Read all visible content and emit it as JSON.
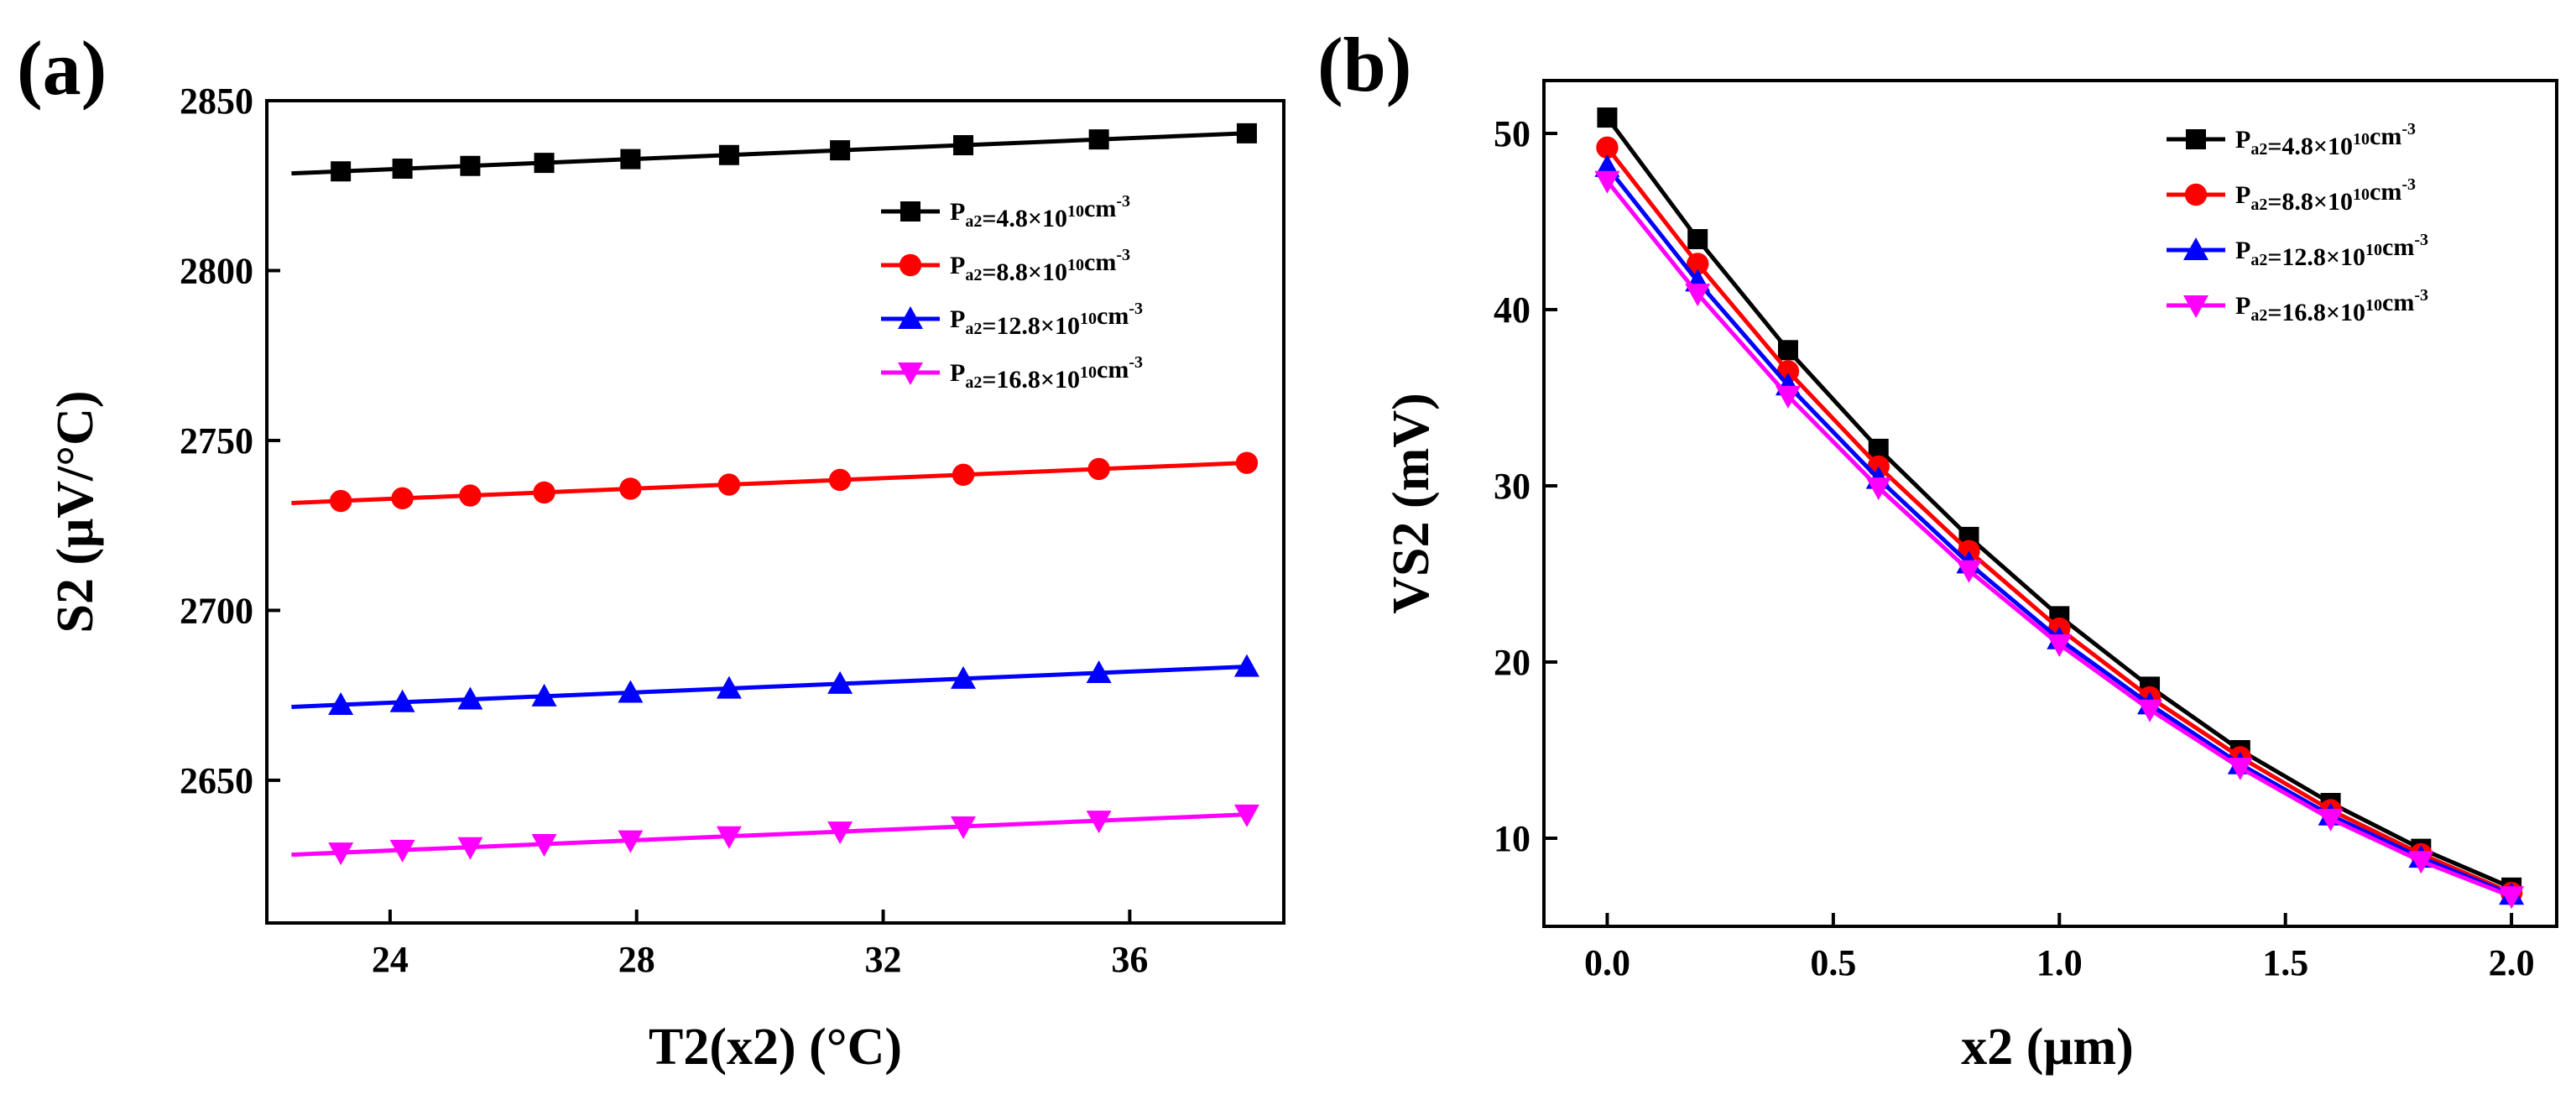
{
  "panels": [
    {
      "label": "(a)",
      "chart_data": {
        "type": "line",
        "xlabel": "T2(x2) (°C)",
        "ylabel": "S2 (μV/°C)",
        "xlim": [
          22,
          38.5
        ],
        "ylim": [
          2608,
          2850
        ],
        "xticks": [
          24,
          28,
          32,
          36
        ],
        "yticks": [
          2650,
          2700,
          2750,
          2800,
          2850
        ],
        "legend_position": "right",
        "series": [
          {
            "name": "Pa2=4.8×10^10cm^-3",
            "label_main": "P",
            "label_sub": "a2",
            "label_mid": "=4.8×10",
            "label_sup": "10",
            "label_unit": "cm",
            "label_exp": "-3",
            "color": "#000000",
            "marker": "square",
            "line_start": [
              22.4,
              2828.6
            ],
            "line_end": [
              38.0,
              2840.5
            ],
            "x": [
              23.2,
              24.2,
              25.3,
              26.5,
              27.9,
              29.5,
              31.3,
              33.3,
              35.5,
              37.9
            ],
            "y": [
              2829.2,
              2830.0,
              2830.8,
              2831.7,
              2832.8,
              2834.0,
              2835.4,
              2836.9,
              2838.6,
              2840.4
            ]
          },
          {
            "name": "Pa2=8.8×10^10cm^-3",
            "label_main": "P",
            "label_sub": "a2",
            "label_mid": "=8.8×10",
            "label_sup": "10",
            "label_unit": "cm",
            "label_exp": "-3",
            "color": "#ff0000",
            "marker": "circle",
            "line_start": [
              22.4,
              2731.6
            ],
            "line_end": [
              38.0,
              2743.5
            ],
            "x": [
              23.2,
              24.2,
              25.3,
              26.5,
              27.9,
              29.5,
              31.3,
              33.3,
              35.5,
              37.9
            ],
            "y": [
              2732.2,
              2733.0,
              2733.8,
              2734.7,
              2735.8,
              2737.0,
              2738.4,
              2739.9,
              2741.6,
              2743.4
            ]
          },
          {
            "name": "Pa2=12.8×10^10cm^-3",
            "label_main": "P",
            "label_sub": "a2",
            "label_mid": "=12.8×10",
            "label_sup": "10",
            "label_unit": "cm",
            "label_exp": "-3",
            "color": "#0000ff",
            "marker": "triangle-up",
            "line_start": [
              22.4,
              2671.6
            ],
            "line_end": [
              38.0,
              2683.5
            ],
            "x": [
              23.2,
              24.2,
              25.3,
              26.5,
              27.9,
              29.5,
              31.3,
              33.3,
              35.5,
              37.9
            ],
            "y": [
              2672.2,
              2673.0,
              2673.8,
              2674.7,
              2675.8,
              2677.0,
              2678.4,
              2679.9,
              2681.6,
              2683.4
            ]
          },
          {
            "name": "Pa2=16.8×10^10cm^-3",
            "label_main": "P",
            "label_sub": "a2",
            "label_mid": "=16.8×10",
            "label_sup": "10",
            "label_unit": "cm",
            "label_exp": "-3",
            "color": "#ff00ff",
            "marker": "triangle-down",
            "line_start": [
              22.4,
              2628.1
            ],
            "line_end": [
              38.0,
              2640.0
            ],
            "x": [
              23.2,
              24.2,
              25.3,
              26.5,
              27.9,
              29.5,
              31.3,
              33.3,
              35.5,
              37.9
            ],
            "y": [
              2628.7,
              2629.5,
              2630.3,
              2631.2,
              2632.3,
              2633.5,
              2634.9,
              2636.4,
              2638.1,
              2639.9
            ]
          }
        ]
      }
    },
    {
      "label": "(b)",
      "chart_data": {
        "type": "line",
        "xlabel": "x2 (μm)",
        "ylabel": "VS2 (mV)",
        "xlim": [
          -0.14,
          2.1
        ],
        "ylim": [
          5,
          53
        ],
        "xticks": [
          0.0,
          0.5,
          1.0,
          1.5,
          2.0
        ],
        "xtick_labels": [
          "0.0",
          "0.5",
          "1.0",
          "1.5",
          "2.0"
        ],
        "yticks": [
          10,
          20,
          30,
          40,
          50
        ],
        "legend_position": "top-right",
        "series": [
          {
            "name": "Pa2=4.8×10^10cm^-3",
            "label_main": "P",
            "label_sub": "a2",
            "label_mid": "=4.8×10",
            "label_sup": "10",
            "label_unit": "cm",
            "label_exp": "-3",
            "color": "#000000",
            "marker": "square",
            "x": [
              0.0,
              0.2,
              0.4,
              0.6,
              0.8,
              1.0,
              1.2,
              1.4,
              1.6,
              1.8,
              2.0
            ],
            "y": [
              50.9,
              44.0,
              37.7,
              32.1,
              27.1,
              22.6,
              18.6,
              15.0,
              12.0,
              9.4,
              7.2
            ]
          },
          {
            "name": "Pa2=8.8×10^10cm^-3",
            "label_main": "P",
            "label_sub": "a2",
            "label_mid": "=8.8×10",
            "label_sup": "10",
            "label_unit": "cm",
            "label_exp": "-3",
            "color": "#ff0000",
            "marker": "circle",
            "x": [
              0.0,
              0.2,
              0.4,
              0.6,
              0.8,
              1.0,
              1.2,
              1.4,
              1.6,
              1.8,
              2.0
            ],
            "y": [
              49.2,
              42.6,
              36.5,
              31.1,
              26.3,
              21.9,
              18.0,
              14.6,
              11.6,
              9.1,
              6.9
            ]
          },
          {
            "name": "Pa2=12.8×10^10cm^-3",
            "label_main": "P",
            "label_sub": "a2",
            "label_mid": "=12.8×10",
            "label_sup": "10",
            "label_unit": "cm",
            "label_exp": "-3",
            "color": "#0000ff",
            "marker": "triangle-up",
            "x": [
              0.0,
              0.2,
              0.4,
              0.6,
              0.8,
              1.0,
              1.2,
              1.4,
              1.6,
              1.8,
              2.0
            ],
            "y": [
              48.1,
              41.6,
              35.7,
              30.4,
              25.6,
              21.3,
              17.6,
              14.2,
              11.3,
              8.9,
              6.8
            ]
          },
          {
            "name": "Pa2=16.8×10^10cm^-3",
            "label_main": "P",
            "label_sub": "a2",
            "label_mid": "=16.8×10",
            "label_sup": "10",
            "label_unit": "cm",
            "label_exp": "-3",
            "color": "#ff00ff",
            "marker": "triangle-down",
            "x": [
              0.0,
              0.2,
              0.4,
              0.6,
              0.8,
              1.0,
              1.2,
              1.4,
              1.6,
              1.8,
              2.0
            ],
            "y": [
              47.3,
              40.9,
              35.1,
              29.9,
              25.2,
              21.0,
              17.3,
              14.0,
              11.1,
              8.7,
              6.7
            ]
          }
        ]
      }
    }
  ]
}
